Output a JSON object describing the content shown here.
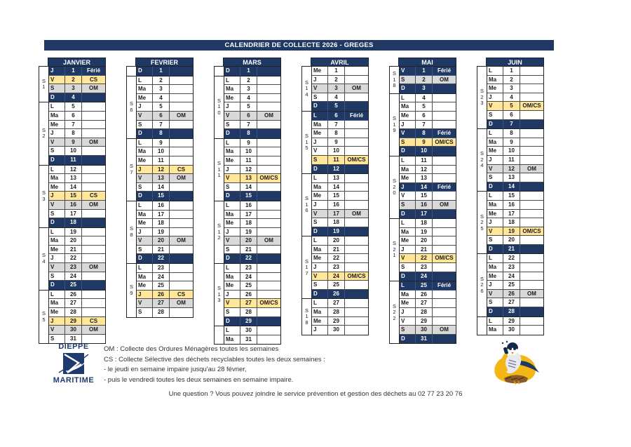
{
  "title": "CALENDRIER DE COLLECTE 2026 - GREGES",
  "colors": {
    "navy": "#1F3864",
    "yellow": "#FFE699",
    "gray": "#D9D9D9",
    "logo": "#1F3A6E",
    "bird_yellow": "#F2B713"
  },
  "legend": {
    "lines": [
      "OM : Collecte des Ordures Ménagères toutes les semaines",
      "CS : Collecte Sélective des déchets recyclables toutes les deux semaines :",
      "- le jeudi en semaine impaire jusqu'au 28 février,",
      "- puis le vendredi toutes les deux semaines en semaine impaire."
    ]
  },
  "footer": "Une question ? Vous pouvez joindre le service prévention et gestion des déchets au 02 77 23 20 76",
  "logo": {
    "top": "DIEPPE",
    "bottom": "MARITIME"
  },
  "months": [
    {
      "name": "JANVIER",
      "weeks": [
        {
          "label": "S1",
          "days": [
            [
              "J",
              1,
              "Férié"
            ],
            [
              "V",
              2,
              "CS"
            ],
            [
              "S",
              3,
              "OM"
            ],
            [
              "D",
              4,
              ""
            ]
          ]
        },
        {
          "label": "S2",
          "days": [
            [
              "L",
              5,
              ""
            ],
            [
              "Ma",
              6,
              ""
            ],
            [
              "Me",
              7,
              ""
            ],
            [
              "J",
              8,
              ""
            ],
            [
              "V",
              9,
              "OM"
            ],
            [
              "S",
              10,
              ""
            ],
            [
              "D",
              11,
              ""
            ]
          ]
        },
        {
          "label": "S3",
          "days": [
            [
              "L",
              12,
              ""
            ],
            [
              "Ma",
              13,
              ""
            ],
            [
              "Me",
              14,
              ""
            ],
            [
              "J",
              15,
              "CS"
            ],
            [
              "V",
              16,
              "OM"
            ],
            [
              "S",
              17,
              ""
            ],
            [
              "D",
              18,
              ""
            ]
          ]
        },
        {
          "label": "S4",
          "days": [
            [
              "L",
              19,
              ""
            ],
            [
              "Ma",
              20,
              ""
            ],
            [
              "Me",
              21,
              ""
            ],
            [
              "J",
              22,
              ""
            ],
            [
              "V",
              23,
              "OM"
            ],
            [
              "S",
              24,
              ""
            ],
            [
              "D",
              25,
              ""
            ]
          ]
        },
        {
          "label": "S5",
          "days": [
            [
              "L",
              26,
              ""
            ],
            [
              "Ma",
              27,
              ""
            ],
            [
              "Me",
              28,
              ""
            ],
            [
              "J",
              29,
              "CS"
            ],
            [
              "V",
              30,
              "OM"
            ],
            [
              "S",
              31,
              ""
            ]
          ]
        }
      ]
    },
    {
      "name": "FEVRIER",
      "weeks": [
        {
          "label": "",
          "days": [
            [
              "D",
              1,
              ""
            ]
          ]
        },
        {
          "label": "S6",
          "days": [
            [
              "L",
              2,
              ""
            ],
            [
              "Ma",
              3,
              ""
            ],
            [
              "Me",
              4,
              ""
            ],
            [
              "J",
              5,
              ""
            ],
            [
              "V",
              6,
              "OM"
            ],
            [
              "S",
              7,
              ""
            ],
            [
              "D",
              8,
              ""
            ]
          ]
        },
        {
          "label": "S7",
          "days": [
            [
              "L",
              9,
              ""
            ],
            [
              "Ma",
              10,
              ""
            ],
            [
              "Me",
              11,
              ""
            ],
            [
              "J",
              12,
              "CS"
            ],
            [
              "V",
              13,
              "OM"
            ],
            [
              "S",
              14,
              ""
            ],
            [
              "D",
              15,
              ""
            ]
          ]
        },
        {
          "label": "S8",
          "days": [
            [
              "L",
              16,
              ""
            ],
            [
              "Ma",
              17,
              ""
            ],
            [
              "Me",
              18,
              ""
            ],
            [
              "J",
              19,
              ""
            ],
            [
              "V",
              20,
              "OM"
            ],
            [
              "S",
              21,
              ""
            ],
            [
              "D",
              22,
              ""
            ]
          ]
        },
        {
          "label": "S9",
          "days": [
            [
              "L",
              23,
              ""
            ],
            [
              "Ma",
              24,
              ""
            ],
            [
              "Me",
              25,
              ""
            ],
            [
              "J",
              26,
              "CS"
            ],
            [
              "V",
              27,
              "OM"
            ],
            [
              "S",
              28,
              ""
            ]
          ]
        }
      ]
    },
    {
      "name": "MARS",
      "weeks": [
        {
          "label": "",
          "days": [
            [
              "D",
              1,
              ""
            ]
          ]
        },
        {
          "label": "S10",
          "days": [
            [
              "L",
              2,
              ""
            ],
            [
              "Ma",
              3,
              ""
            ],
            [
              "Me",
              4,
              ""
            ],
            [
              "J",
              5,
              ""
            ],
            [
              "V",
              6,
              "OM"
            ],
            [
              "S",
              7,
              ""
            ],
            [
              "D",
              8,
              ""
            ]
          ]
        },
        {
          "label": "S11",
          "days": [
            [
              "L",
              9,
              ""
            ],
            [
              "Ma",
              10,
              ""
            ],
            [
              "Me",
              11,
              ""
            ],
            [
              "J",
              12,
              ""
            ],
            [
              "V",
              13,
              "OM/CS"
            ],
            [
              "S",
              14,
              ""
            ],
            [
              "D",
              15,
              ""
            ]
          ]
        },
        {
          "label": "S12",
          "days": [
            [
              "L",
              16,
              ""
            ],
            [
              "Ma",
              17,
              ""
            ],
            [
              "Me",
              18,
              ""
            ],
            [
              "J",
              19,
              ""
            ],
            [
              "V",
              20,
              "OM"
            ],
            [
              "S",
              21,
              ""
            ],
            [
              "D",
              22,
              ""
            ]
          ]
        },
        {
          "label": "S13",
          "days": [
            [
              "L",
              23,
              ""
            ],
            [
              "Ma",
              24,
              ""
            ],
            [
              "Me",
              25,
              ""
            ],
            [
              "J",
              26,
              ""
            ],
            [
              "V",
              27,
              "OM/CS"
            ],
            [
              "S",
              28,
              ""
            ],
            [
              "D",
              29,
              ""
            ]
          ]
        },
        {
          "label": "",
          "days": [
            [
              "L",
              30,
              ""
            ],
            [
              "Ma",
              31,
              ""
            ]
          ]
        }
      ]
    },
    {
      "name": "AVRIL",
      "weeks": [
        {
          "label": "S14",
          "days": [
            [
              "Me",
              1,
              ""
            ],
            [
              "J",
              2,
              ""
            ],
            [
              "V",
              3,
              "OM"
            ],
            [
              "S",
              4,
              ""
            ],
            [
              "D",
              5,
              ""
            ]
          ]
        },
        {
          "label": "S15",
          "days": [
            [
              "L",
              6,
              "Férié"
            ],
            [
              "Ma",
              7,
              ""
            ],
            [
              "Me",
              8,
              ""
            ],
            [
              "J",
              9,
              ""
            ],
            [
              "V",
              10,
              ""
            ],
            [
              "S",
              11,
              "OM/CS"
            ],
            [
              "D",
              12,
              ""
            ]
          ]
        },
        {
          "label": "S16",
          "days": [
            [
              "L",
              13,
              ""
            ],
            [
              "Ma",
              14,
              ""
            ],
            [
              "Me",
              15,
              ""
            ],
            [
              "J",
              16,
              ""
            ],
            [
              "V",
              17,
              "OM"
            ],
            [
              "S",
              18,
              ""
            ],
            [
              "D",
              19,
              ""
            ]
          ]
        },
        {
          "label": "S17",
          "days": [
            [
              "L",
              20,
              ""
            ],
            [
              "Ma",
              21,
              ""
            ],
            [
              "Me",
              22,
              ""
            ],
            [
              "J",
              23,
              ""
            ],
            [
              "V",
              24,
              "OM/CS"
            ],
            [
              "S",
              25,
              ""
            ],
            [
              "D",
              26,
              ""
            ]
          ]
        },
        {
          "label": "S18",
          "days": [
            [
              "L",
              27,
              ""
            ],
            [
              "Ma",
              28,
              ""
            ],
            [
              "Me",
              29,
              ""
            ],
            [
              "J",
              30,
              ""
            ]
          ]
        }
      ]
    },
    {
      "name": "MAI",
      "weeks": [
        {
          "label": "S18",
          "days": [
            [
              "V",
              1,
              "Férié"
            ],
            [
              "S",
              2,
              "OM"
            ],
            [
              "D",
              3,
              ""
            ]
          ]
        },
        {
          "label": "S19",
          "days": [
            [
              "L",
              4,
              ""
            ],
            [
              "Ma",
              5,
              ""
            ],
            [
              "Me",
              6,
              ""
            ],
            [
              "J",
              7,
              ""
            ],
            [
              "V",
              8,
              "Férié"
            ],
            [
              "S",
              9,
              "OM/CS"
            ],
            [
              "D",
              10,
              ""
            ]
          ]
        },
        {
          "label": "S20",
          "days": [
            [
              "L",
              11,
              ""
            ],
            [
              "Ma",
              12,
              ""
            ],
            [
              "Me",
              13,
              ""
            ],
            [
              "J",
              14,
              "Férié"
            ],
            [
              "V",
              15,
              ""
            ],
            [
              "S",
              16,
              "OM"
            ],
            [
              "D",
              17,
              ""
            ]
          ]
        },
        {
          "label": "S21",
          "days": [
            [
              "L",
              18,
              ""
            ],
            [
              "Ma",
              19,
              ""
            ],
            [
              "Me",
              20,
              ""
            ],
            [
              "J",
              21,
              ""
            ],
            [
              "V",
              22,
              "OM/CS"
            ],
            [
              "S",
              23,
              ""
            ],
            [
              "D",
              24,
              ""
            ]
          ]
        },
        {
          "label": "S22",
          "days": [
            [
              "L",
              25,
              "Férié"
            ],
            [
              "Ma",
              26,
              ""
            ],
            [
              "Me",
              27,
              ""
            ],
            [
              "J",
              28,
              ""
            ],
            [
              "V",
              29,
              ""
            ],
            [
              "S",
              30,
              "OM"
            ],
            [
              "D",
              31,
              ""
            ]
          ]
        }
      ]
    },
    {
      "name": "JUIN",
      "weeks": [
        {
          "label": "S23",
          "days": [
            [
              "L",
              1,
              ""
            ],
            [
              "Ma",
              2,
              ""
            ],
            [
              "Me",
              3,
              ""
            ],
            [
              "J",
              4,
              ""
            ],
            [
              "V",
              5,
              "OM/CS"
            ],
            [
              "S",
              6,
              ""
            ],
            [
              "D",
              7,
              ""
            ]
          ]
        },
        {
          "label": "S24",
          "days": [
            [
              "L",
              8,
              ""
            ],
            [
              "Ma",
              9,
              ""
            ],
            [
              "Me",
              10,
              ""
            ],
            [
              "J",
              11,
              ""
            ],
            [
              "V",
              12,
              "OM"
            ],
            [
              "S",
              13,
              ""
            ],
            [
              "D",
              14,
              ""
            ]
          ]
        },
        {
          "label": "S25",
          "days": [
            [
              "L",
              15,
              ""
            ],
            [
              "Ma",
              16,
              ""
            ],
            [
              "Me",
              17,
              ""
            ],
            [
              "J",
              18,
              ""
            ],
            [
              "V",
              19,
              "OM/CS"
            ],
            [
              "S",
              20,
              ""
            ],
            [
              "D",
              21,
              ""
            ]
          ]
        },
        {
          "label": "S26",
          "days": [
            [
              "L",
              22,
              ""
            ],
            [
              "Ma",
              23,
              ""
            ],
            [
              "Me",
              24,
              ""
            ],
            [
              "J",
              25,
              ""
            ],
            [
              "V",
              26,
              "OM"
            ],
            [
              "S",
              27,
              ""
            ],
            [
              "D",
              28,
              ""
            ]
          ]
        },
        {
          "label": "",
          "days": [
            [
              "L",
              29,
              ""
            ],
            [
              "Ma",
              30,
              ""
            ]
          ]
        }
      ]
    }
  ]
}
